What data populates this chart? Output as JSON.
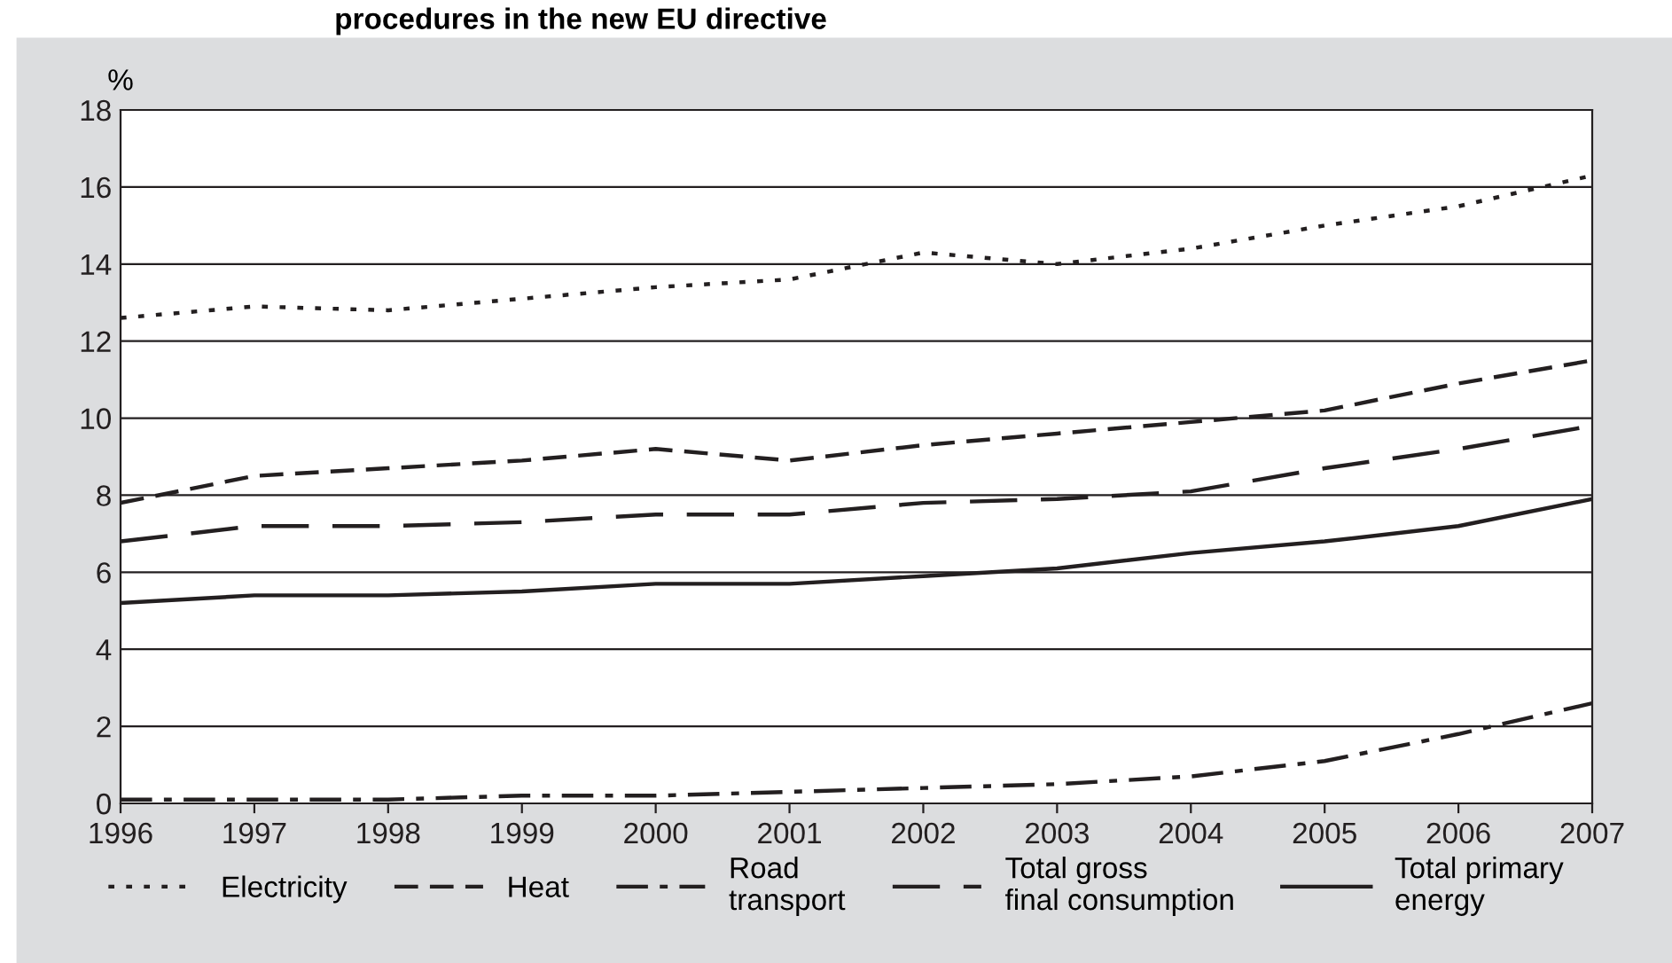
{
  "chart_data": {
    "type": "line",
    "title": "procedures in the new EU directive",
    "ylabel": "%",
    "x": [
      1996,
      1997,
      1998,
      1999,
      2000,
      2001,
      2002,
      2003,
      2004,
      2005,
      2006,
      2007
    ],
    "xlim": [
      1996,
      2007
    ],
    "xticks": [
      1996,
      1997,
      1998,
      1999,
      2000,
      2001,
      2002,
      2003,
      2004,
      2005,
      2006,
      2007
    ],
    "ylim": [
      0,
      18
    ],
    "yticks": [
      0,
      2,
      4,
      6,
      8,
      10,
      12,
      14,
      16,
      18
    ],
    "grid": "y",
    "legend": "bottom",
    "marker": "none",
    "series": [
      {
        "name": "Electricity",
        "color": "#231f20",
        "line_style": "dotted",
        "values": [
          12.6,
          12.9,
          12.8,
          13.1,
          13.4,
          13.6,
          14.3,
          14.0,
          14.4,
          15.0,
          15.5,
          16.3
        ]
      },
      {
        "name": "Heat",
        "color": "#231f20",
        "line_style": "dashed",
        "values": [
          7.8,
          8.5,
          8.7,
          8.9,
          9.2,
          8.9,
          9.3,
          9.6,
          9.9,
          10.2,
          10.9,
          11.5
        ]
      },
      {
        "name": "Road\ntransport",
        "color": "#231f20",
        "line_style": "dashdot",
        "values": [
          0.1,
          0.1,
          0.1,
          0.2,
          0.2,
          0.3,
          0.4,
          0.5,
          0.7,
          1.1,
          1.8,
          2.6
        ]
      },
      {
        "name": "Total gross\nfinal consumption",
        "color": "#231f20",
        "line_style": "longdash",
        "values": [
          6.8,
          7.2,
          7.2,
          7.3,
          7.5,
          7.5,
          7.8,
          7.9,
          8.1,
          8.7,
          9.2,
          9.8
        ]
      },
      {
        "name": "Total primary\nenergy",
        "color": "#231f20",
        "line_style": "solid",
        "values": [
          5.2,
          5.4,
          5.4,
          5.5,
          5.7,
          5.7,
          5.9,
          6.1,
          6.5,
          6.8,
          7.2,
          7.9
        ]
      }
    ]
  }
}
